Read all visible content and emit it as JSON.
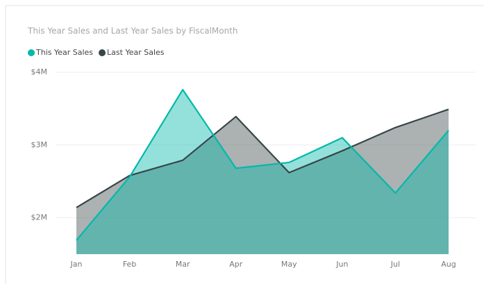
{
  "chart_data": {
    "type": "area",
    "title": "This Year Sales and Last Year Sales by FiscalMonth",
    "categories": [
      "Jan",
      "Feb",
      "Mar",
      "Apr",
      "May",
      "Jun",
      "Jul",
      "Aug"
    ],
    "series": [
      {
        "name": "This Year Sales",
        "color": "#01b8aa",
        "values": [
          1690000,
          2560000,
          3760000,
          2680000,
          2760000,
          3100000,
          2340000,
          3200000
        ]
      },
      {
        "name": "Last Year Sales",
        "color": "#374649",
        "values": [
          2140000,
          2580000,
          2790000,
          3390000,
          2620000,
          2920000,
          3240000,
          3490000
        ]
      }
    ],
    "ylim": [
      1500000,
      4000000
    ],
    "yticks": [
      {
        "value": 2000000,
        "label": "$2M"
      },
      {
        "value": 3000000,
        "label": "$3M"
      },
      {
        "value": 4000000,
        "label": "$4M"
      }
    ],
    "grid": true
  }
}
